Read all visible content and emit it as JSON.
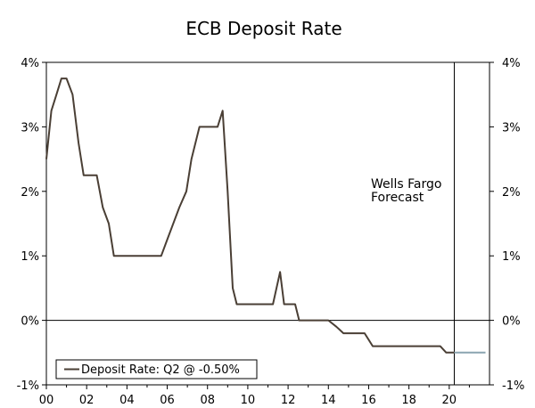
{
  "chart_data": {
    "type": "line",
    "title": "ECB Deposit Rate",
    "xlabel": "",
    "ylabel": "",
    "xlim": [
      2000,
      2022
    ],
    "ylim": [
      -1,
      4
    ],
    "x_tick_values": [
      2000,
      2002,
      2004,
      2006,
      2008,
      2010,
      2012,
      2014,
      2016,
      2018,
      2020
    ],
    "x_tick_labels": [
      "00",
      "02",
      "04",
      "06",
      "08",
      "10",
      "12",
      "14",
      "16",
      "18",
      "20"
    ],
    "y_tick_values": [
      4,
      3,
      2,
      1,
      0,
      -1
    ],
    "y_tick_labels": [
      "4%",
      "3%",
      "2%",
      "1%",
      "0%",
      "-1%"
    ],
    "forecast_start": 2020.25,
    "annotation": [
      "Wells Fargo",
      "Forecast"
    ],
    "legend": {
      "label": "Deposit Rate: Q2 @ -0.50%",
      "position": "bottom-left"
    },
    "series": [
      {
        "name": "Deposit Rate: Q2 @ -0.50%",
        "color": "#4a3f35",
        "forecast_color": "#8aa4b0",
        "points": [
          [
            2000.0,
            2.5
          ],
          [
            2000.25,
            3.25
          ],
          [
            2000.5,
            3.5
          ],
          [
            2000.75,
            3.75
          ],
          [
            2001.0,
            3.75
          ],
          [
            2001.3,
            3.5
          ],
          [
            2001.6,
            2.75
          ],
          [
            2001.85,
            2.25
          ],
          [
            2002.0,
            2.25
          ],
          [
            2002.5,
            2.25
          ],
          [
            2002.8,
            1.75
          ],
          [
            2003.1,
            1.5
          ],
          [
            2003.35,
            1.0
          ],
          [
            2004.0,
            1.0
          ],
          [
            2005.0,
            1.0
          ],
          [
            2005.7,
            1.0
          ],
          [
            2006.0,
            1.25
          ],
          [
            2006.6,
            1.75
          ],
          [
            2006.95,
            2.0
          ],
          [
            2007.2,
            2.5
          ],
          [
            2007.6,
            3.0
          ],
          [
            2008.0,
            3.0
          ],
          [
            2008.5,
            3.0
          ],
          [
            2008.75,
            3.25
          ],
          [
            2009.0,
            2.0
          ],
          [
            2009.25,
            0.5
          ],
          [
            2009.45,
            0.25
          ],
          [
            2010.0,
            0.25
          ],
          [
            2011.0,
            0.25
          ],
          [
            2011.25,
            0.25
          ],
          [
            2011.6,
            0.75
          ],
          [
            2011.8,
            0.25
          ],
          [
            2012.35,
            0.25
          ],
          [
            2012.55,
            0.0
          ],
          [
            2013.0,
            0.0
          ],
          [
            2014.0,
            0.0
          ],
          [
            2014.4,
            -0.1
          ],
          [
            2014.75,
            -0.2
          ],
          [
            2015.0,
            -0.2
          ],
          [
            2015.8,
            -0.2
          ],
          [
            2016.2,
            -0.4
          ],
          [
            2017.0,
            -0.4
          ],
          [
            2018.0,
            -0.4
          ],
          [
            2019.0,
            -0.4
          ],
          [
            2019.55,
            -0.4
          ],
          [
            2019.85,
            -0.5
          ],
          [
            2020.25,
            -0.5
          ]
        ],
        "forecast_points": [
          [
            2020.25,
            -0.5
          ],
          [
            2021.8,
            -0.5
          ]
        ]
      }
    ]
  }
}
